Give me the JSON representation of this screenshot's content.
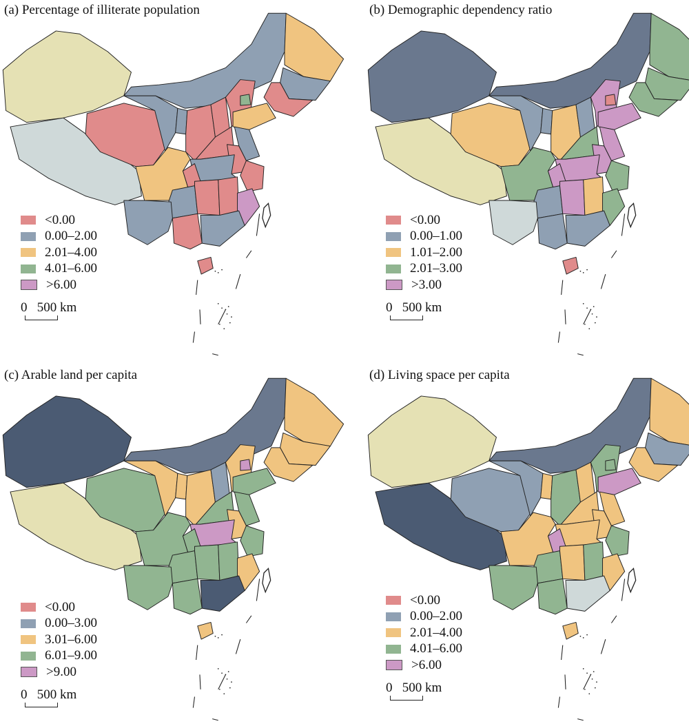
{
  "palette": {
    "red": "#e08b8b",
    "blue": "#8fa0b3",
    "orange": "#f0c480",
    "green": "#91b591",
    "pink": "#cc99c5",
    "slate": "#6a788e",
    "navy": "#4b5b73",
    "pale": "#e5e1b4",
    "light": "#cfd9d9"
  },
  "panels": [
    {
      "title": "(a) Percentage of illiterate population",
      "legend": [
        {
          "label": "<0.00",
          "color": "#e08b8b"
        },
        {
          "label": "0.00–2.00",
          "color": "#8fa0b3"
        },
        {
          "label": "2.01–4.00",
          "color": "#f0c480"
        },
        {
          "label": "4.01–6.00",
          "color": "#91b591"
        },
        {
          "label": ">6.00",
          "color": "#cc99c5"
        }
      ],
      "scale": {
        "zero": "0",
        "label": "500 km"
      },
      "fills": [
        "pale",
        "light",
        "red",
        "blue",
        "orange",
        "blue",
        "red",
        "blue",
        "blue",
        "red",
        "red",
        "red",
        "green",
        "orange",
        "red",
        "blue",
        "red",
        "red",
        "blue",
        "red",
        "orange",
        "blue",
        "red",
        "red",
        "pink",
        "blue",
        "red",
        "blue",
        "red"
      ]
    },
    {
      "title": "(b) Demographic dependency ratio",
      "legend": [
        {
          "label": "<0.00",
          "color": "#e08b8b"
        },
        {
          "label": "0.00–1.00",
          "color": "#8fa0b3"
        },
        {
          "label": "1.01–2.00",
          "color": "#f0c480"
        },
        {
          "label": "2.01–3.00",
          "color": "#91b591"
        },
        {
          "label": ">3.00",
          "color": "#cc99c5"
        }
      ],
      "scale": {
        "zero": "0",
        "label": "500 km"
      },
      "fills": [
        "slate",
        "pale",
        "orange",
        "slate",
        "green",
        "green",
        "green",
        "blue",
        "blue",
        "orange",
        "blue",
        "pink",
        "red",
        "pink",
        "green",
        "pink",
        "pink",
        "green",
        "pink",
        "pink",
        "green",
        "blue",
        "pink",
        "orange",
        "green",
        "blue",
        "blue",
        "light",
        "red"
      ]
    },
    {
      "title": "(c) Arable land per capita",
      "legend": [
        {
          "label": "<0.00",
          "color": "#e08b8b"
        },
        {
          "label": "0.00–3.00",
          "color": "#8fa0b3"
        },
        {
          "label": "3.01–6.00",
          "color": "#f0c480"
        },
        {
          "label": "6.01–9.00",
          "color": "#91b591"
        },
        {
          "label": ">9.00",
          "color": "#cc99c5"
        }
      ],
      "scale": {
        "zero": "0",
        "label": "500 km"
      },
      "fills": [
        "navy",
        "pale",
        "green",
        "slate",
        "orange",
        "orange",
        "orange",
        "orange",
        "orange",
        "orange",
        "blue",
        "orange",
        "pink",
        "green",
        "green",
        "green",
        "orange",
        "green",
        "pink",
        "green",
        "green",
        "green",
        "green",
        "green",
        "orange",
        "navy",
        "green",
        "green",
        "orange"
      ]
    },
    {
      "title": "(d) Living space per capita",
      "legend": [
        {
          "label": "<0.00",
          "color": "#e08b8b"
        },
        {
          "label": "0.00–2.00",
          "color": "#8fa0b3"
        },
        {
          "label": "2.01–4.00",
          "color": "#f0c480"
        },
        {
          "label": "4.01–6.00",
          "color": "#91b591"
        },
        {
          "label": ">6.00",
          "color": "#cc99c5"
        }
      ],
      "scale": {
        "zero": "0",
        "label": "500 km"
      },
      "fills": [
        "pale",
        "navy",
        "blue",
        "slate",
        "orange",
        "blue",
        "orange",
        "blue",
        "orange",
        "green",
        "orange",
        "green",
        "green",
        "pink",
        "orange",
        "orange",
        "orange",
        "green",
        "orange",
        "pink",
        "orange",
        "green",
        "orange",
        "green",
        "orange",
        "light",
        "green",
        "green",
        "orange"
      ]
    }
  ]
}
